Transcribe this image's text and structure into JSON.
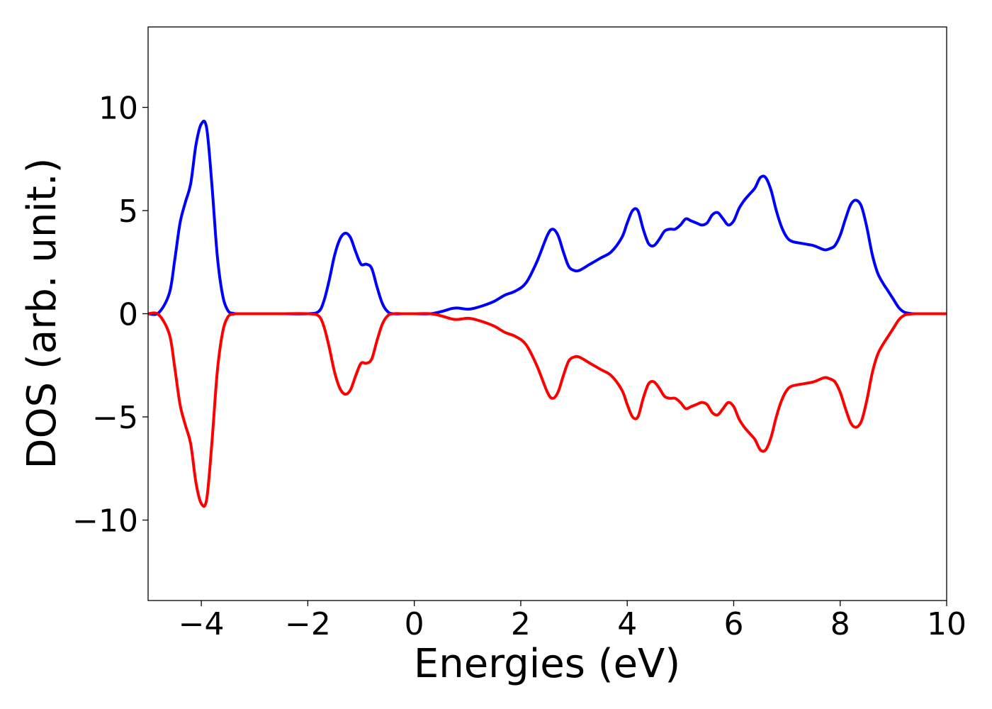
{
  "chart_data": {
    "type": "line",
    "xlabel": "Energies (eV)",
    "ylabel": "DOS (arb. unit.)",
    "xlim": [
      -5,
      10
    ],
    "ylim": [
      -13.9,
      13.9
    ],
    "xticks": [
      -4,
      -2,
      0,
      2,
      4,
      6,
      8,
      10
    ],
    "xtick_labels": [
      "−4",
      "−2",
      "0",
      "2",
      "4",
      "6",
      "8",
      "10"
    ],
    "yticks": [
      -10,
      -5,
      0,
      5,
      10
    ],
    "ytick_labels": [
      "−10",
      "−5",
      "0",
      "5",
      "10"
    ],
    "grid": false,
    "legend": "none",
    "series": [
      {
        "color": "#0000ff",
        "x": [
          -5.0,
          -4.8,
          -4.6,
          -4.5,
          -4.4,
          -4.3,
          -4.2,
          -4.1,
          -4.0,
          -3.9,
          -3.8,
          -3.7,
          -3.6,
          -3.5,
          -3.4,
          -3.3,
          -3.0,
          -2.5,
          -2.0,
          -1.8,
          -1.7,
          -1.6,
          -1.5,
          -1.4,
          -1.3,
          -1.2,
          -1.1,
          -1.0,
          -0.9,
          -0.8,
          -0.7,
          -0.6,
          -0.5,
          -0.4,
          -0.2,
          0.0,
          0.3,
          0.5,
          0.7,
          0.8,
          0.9,
          1.0,
          1.1,
          1.3,
          1.5,
          1.7,
          1.9,
          2.1,
          2.3,
          2.5,
          2.6,
          2.7,
          2.8,
          2.9,
          3.0,
          3.1,
          3.3,
          3.5,
          3.7,
          3.9,
          4.0,
          4.1,
          4.2,
          4.3,
          4.4,
          4.5,
          4.6,
          4.7,
          4.8,
          4.9,
          5.0,
          5.1,
          5.2,
          5.3,
          5.4,
          5.5,
          5.6,
          5.7,
          5.8,
          5.9,
          6.0,
          6.1,
          6.2,
          6.3,
          6.4,
          6.5,
          6.6,
          6.7,
          6.8,
          6.9,
          7.0,
          7.1,
          7.3,
          7.5,
          7.7,
          7.8,
          7.9,
          8.0,
          8.1,
          8.2,
          8.3,
          8.4,
          8.5,
          8.6,
          8.7,
          8.8,
          8.9,
          9.0,
          9.1,
          9.2,
          9.3,
          9.4,
          9.6,
          10.0
        ],
        "y": [
          0.0,
          0.05,
          1.0,
          2.6,
          4.4,
          5.4,
          6.3,
          8.2,
          9.2,
          9.0,
          6.2,
          2.8,
          0.9,
          0.15,
          0.02,
          0.0,
          0.0,
          0.0,
          0.0,
          0.1,
          0.6,
          1.6,
          2.8,
          3.6,
          3.9,
          3.7,
          3.0,
          2.4,
          2.4,
          2.2,
          1.3,
          0.5,
          0.1,
          0.0,
          0.0,
          0.0,
          0.0,
          0.1,
          0.25,
          0.28,
          0.25,
          0.22,
          0.25,
          0.4,
          0.6,
          0.9,
          1.1,
          1.5,
          2.5,
          3.8,
          4.1,
          3.8,
          3.0,
          2.3,
          2.1,
          2.1,
          2.4,
          2.7,
          3.0,
          3.7,
          4.4,
          5.0,
          5.0,
          4.1,
          3.4,
          3.3,
          3.6,
          4.0,
          4.1,
          4.1,
          4.3,
          4.6,
          4.5,
          4.4,
          4.3,
          4.4,
          4.8,
          4.9,
          4.6,
          4.3,
          4.5,
          5.1,
          5.5,
          5.8,
          6.1,
          6.6,
          6.6,
          6.0,
          5.0,
          4.2,
          3.7,
          3.5,
          3.4,
          3.3,
          3.1,
          3.15,
          3.3,
          3.8,
          4.6,
          5.3,
          5.5,
          5.2,
          4.2,
          2.9,
          2.0,
          1.5,
          1.1,
          0.7,
          0.3,
          0.08,
          0.02,
          0.0,
          0.0,
          0.0
        ]
      },
      {
        "color": "#ff0000",
        "x": [
          -5.0,
          -4.8,
          -4.6,
          -4.5,
          -4.4,
          -4.3,
          -4.2,
          -4.1,
          -4.0,
          -3.9,
          -3.8,
          -3.7,
          -3.6,
          -3.5,
          -3.4,
          -3.3,
          -3.0,
          -2.5,
          -2.0,
          -1.8,
          -1.7,
          -1.6,
          -1.5,
          -1.4,
          -1.3,
          -1.2,
          -1.1,
          -1.0,
          -0.9,
          -0.8,
          -0.7,
          -0.6,
          -0.5,
          -0.4,
          -0.2,
          0.0,
          0.3,
          0.5,
          0.7,
          0.8,
          0.9,
          1.0,
          1.1,
          1.3,
          1.5,
          1.7,
          1.9,
          2.1,
          2.3,
          2.5,
          2.6,
          2.7,
          2.8,
          2.9,
          3.0,
          3.1,
          3.3,
          3.5,
          3.7,
          3.9,
          4.0,
          4.1,
          4.2,
          4.3,
          4.4,
          4.5,
          4.6,
          4.7,
          4.8,
          4.9,
          5.0,
          5.1,
          5.2,
          5.3,
          5.4,
          5.5,
          5.6,
          5.7,
          5.8,
          5.9,
          6.0,
          6.1,
          6.2,
          6.3,
          6.4,
          6.5,
          6.6,
          6.7,
          6.8,
          6.9,
          7.0,
          7.1,
          7.3,
          7.5,
          7.7,
          7.8,
          7.9,
          8.0,
          8.1,
          8.2,
          8.3,
          8.4,
          8.5,
          8.6,
          8.7,
          8.8,
          8.9,
          9.0,
          9.1,
          9.2,
          9.3,
          9.4,
          9.6,
          10.0
        ],
        "y": [
          0.0,
          -0.05,
          -1.0,
          -2.6,
          -4.4,
          -5.4,
          -6.3,
          -8.2,
          -9.2,
          -9.0,
          -6.2,
          -2.8,
          -0.9,
          -0.15,
          -0.02,
          0.0,
          0.0,
          0.0,
          0.0,
          -0.1,
          -0.6,
          -1.6,
          -2.8,
          -3.6,
          -3.9,
          -3.7,
          -3.0,
          -2.4,
          -2.4,
          -2.2,
          -1.3,
          -0.5,
          -0.1,
          0.0,
          0.0,
          0.0,
          0.0,
          -0.1,
          -0.25,
          -0.28,
          -0.25,
          -0.22,
          -0.25,
          -0.4,
          -0.6,
          -0.9,
          -1.1,
          -1.5,
          -2.5,
          -3.8,
          -4.1,
          -3.8,
          -3.0,
          -2.3,
          -2.1,
          -2.1,
          -2.4,
          -2.7,
          -3.0,
          -3.7,
          -4.4,
          -5.0,
          -5.0,
          -4.1,
          -3.4,
          -3.3,
          -3.6,
          -4.0,
          -4.1,
          -4.1,
          -4.3,
          -4.6,
          -4.5,
          -4.4,
          -4.3,
          -4.4,
          -4.8,
          -4.9,
          -4.6,
          -4.3,
          -4.5,
          -5.1,
          -5.5,
          -5.8,
          -6.1,
          -6.6,
          -6.6,
          -6.0,
          -5.0,
          -4.2,
          -3.7,
          -3.5,
          -3.4,
          -3.3,
          -3.1,
          -3.15,
          -3.3,
          -3.8,
          -4.6,
          -5.3,
          -5.5,
          -5.2,
          -4.2,
          -2.9,
          -2.0,
          -1.5,
          -1.1,
          -0.7,
          -0.3,
          -0.08,
          -0.02,
          0.0,
          0.0,
          0.0
        ]
      }
    ]
  }
}
